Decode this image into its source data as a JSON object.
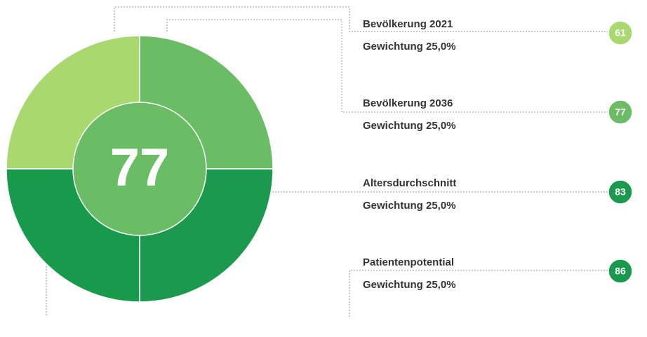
{
  "total": 77,
  "items": [
    {
      "name": "Bevölkerung 2021",
      "weight": 25.0,
      "weight_label": "Gewichtung 25,0%",
      "score": 61,
      "color": "#a8d86e"
    },
    {
      "name": "Bevölkerung 2036",
      "weight": 25.0,
      "weight_label": "Gewichtung 25,0%",
      "score": 77,
      "color": "#6abd65"
    },
    {
      "name": "Altersdurchschnitt",
      "weight": 25.0,
      "weight_label": "Gewichtung 25,0%",
      "score": 83,
      "color": "#1b9a4f"
    },
    {
      "name": "Patientenpotential",
      "weight": 25.0,
      "weight_label": "Gewichtung 25,0%",
      "score": 86,
      "color": "#189a4c"
    }
  ],
  "center_color": "#6abd65"
}
